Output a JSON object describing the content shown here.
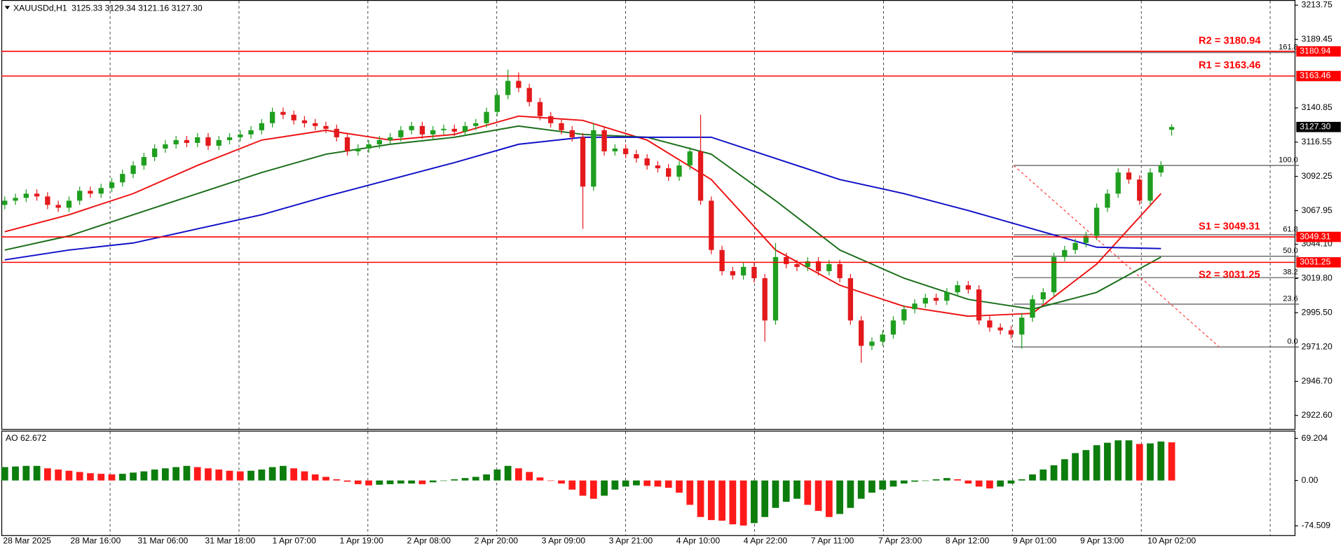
{
  "chart_data": [
    {
      "type": "candlestick",
      "title": "XAUUSDd,H1",
      "subtitle": "3125.33 3129.34 3121.16 3127.30",
      "x_labels": [
        "28 Mar 2025",
        "28 Mar 16:00",
        "31 Mar 06:00",
        "31 Mar 18:00",
        "1 Apr 07:00",
        "1 Apr 19:00",
        "2 Apr 08:00",
        "2 Apr 20:00",
        "3 Apr 09:00",
        "3 Apr 21:00",
        "4 Apr 10:00",
        "4 Apr 22:00",
        "7 Apr 11:00",
        "7 Apr 23:00",
        "8 Apr 12:00",
        "9 Apr 01:00",
        "9 Apr 13:00",
        "10 Apr 02:00"
      ],
      "open": [
        3072,
        3075,
        3077,
        3080,
        3078,
        3072,
        3070,
        3075,
        3082,
        3080,
        3084,
        3088,
        3094,
        3100,
        3106,
        3112,
        3115,
        3118,
        3116,
        3120,
        3114,
        3118,
        3120,
        3122,
        3125,
        3130,
        3138,
        3136,
        3132,
        3130,
        3128,
        3126,
        3120,
        3110,
        3112,
        3115,
        3118,
        3120,
        3125,
        3128,
        3122,
        3125,
        3126,
        3124,
        3128,
        3130,
        3138,
        3150,
        3160,
        3155,
        3145,
        3135,
        3130,
        3125,
        3120,
        3085,
        3125,
        3110,
        3112,
        3108,
        3105,
        3100,
        3098,
        3092,
        3100,
        3110,
        3075,
        3040,
        3025,
        3022,
        3028,
        3020,
        2990,
        3035,
        3030,
        3028,
        3032,
        3025,
        3030,
        3020,
        2990,
        2972,
        2975,
        2980,
        2990,
        2998,
        3002,
        3006,
        3004,
        3010,
        3015,
        3012,
        2990,
        2985,
        2983,
        2980,
        2992,
        3005,
        3010,
        3035,
        3040,
        3045,
        3050,
        3070,
        3080,
        3095,
        3090,
        3075,
        3095,
        3125.33
      ],
      "high": [
        3078,
        3080,
        3083,
        3083,
        3081,
        3075,
        3078,
        3085,
        3085,
        3087,
        3091,
        3097,
        3103,
        3109,
        3115,
        3118,
        3121,
        3121,
        3123,
        3123,
        3121,
        3123,
        3125,
        3128,
        3133,
        3141,
        3141,
        3139,
        3135,
        3133,
        3131,
        3129,
        3123,
        3115,
        3118,
        3121,
        3123,
        3128,
        3131,
        3131,
        3128,
        3129,
        3129,
        3131,
        3133,
        3141,
        3153,
        3168,
        3166,
        3158,
        3148,
        3138,
        3133,
        3128,
        3123,
        3130,
        3128,
        3115,
        3115,
        3111,
        3108,
        3103,
        3101,
        3103,
        3113,
        3136,
        3078,
        3043,
        3028,
        3031,
        3031,
        3023,
        3045,
        3038,
        3033,
        3035,
        3035,
        3033,
        3033,
        3023,
        2993,
        2978,
        2983,
        2993,
        3001,
        3005,
        3009,
        3009,
        3013,
        3018,
        3018,
        3015,
        2993,
        2988,
        2986,
        2995,
        3008,
        3013,
        3038,
        3043,
        3048,
        3053,
        3073,
        3083,
        3098,
        3098,
        3093,
        3098,
        3103,
        3129.34
      ],
      "low": [
        3069,
        3072,
        3074,
        3075,
        3069,
        3067,
        3067,
        3072,
        3077,
        3077,
        3081,
        3085,
        3091,
        3097,
        3103,
        3109,
        3112,
        3113,
        3113,
        3111,
        3111,
        3115,
        3117,
        3119,
        3122,
        3127,
        3133,
        3129,
        3127,
        3125,
        3123,
        3117,
        3107,
        3107,
        3109,
        3112,
        3115,
        3117,
        3122,
        3119,
        3119,
        3122,
        3121,
        3121,
        3125,
        3127,
        3135,
        3147,
        3152,
        3142,
        3132,
        3127,
        3122,
        3117,
        3055,
        3082,
        3107,
        3107,
        3105,
        3102,
        3097,
        3095,
        3089,
        3089,
        3097,
        3072,
        3037,
        3022,
        3019,
        3019,
        3017,
        2975,
        2987,
        3027,
        3025,
        3025,
        3022,
        3022,
        3017,
        2987,
        2960,
        2969,
        2972,
        2977,
        2987,
        2995,
        2999,
        3001,
        3001,
        3007,
        3009,
        2987,
        2982,
        2980,
        2977,
        2970,
        2989,
        3002,
        3007,
        3032,
        3037,
        3042,
        3047,
        3067,
        3077,
        3087,
        3072,
        3072,
        3092,
        3121.16
      ],
      "close": [
        3075,
        3077,
        3080,
        3078,
        3072,
        3070,
        3075,
        3082,
        3080,
        3084,
        3088,
        3094,
        3100,
        3106,
        3112,
        3115,
        3118,
        3116,
        3120,
        3114,
        3118,
        3120,
        3122,
        3125,
        3130,
        3138,
        3136,
        3132,
        3130,
        3128,
        3126,
        3120,
        3110,
        3112,
        3115,
        3118,
        3120,
        3125,
        3128,
        3122,
        3125,
        3126,
        3124,
        3128,
        3130,
        3138,
        3150,
        3160,
        3155,
        3145,
        3135,
        3130,
        3125,
        3120,
        3085,
        3125,
        3110,
        3112,
        3108,
        3105,
        3100,
        3098,
        3092,
        3100,
        3110,
        3075,
        3040,
        3025,
        3022,
        3028,
        3020,
        2990,
        3035,
        3030,
        3028,
        3032,
        3025,
        3030,
        3020,
        2990,
        2972,
        2975,
        2980,
        2990,
        2998,
        3002,
        3006,
        3004,
        3010,
        3015,
        3012,
        2990,
        2985,
        2983,
        2980,
        2992,
        3005,
        3010,
        3035,
        3040,
        3045,
        3050,
        3070,
        3080,
        3095,
        3090,
        3075,
        3095,
        3100,
        3127.3
      ],
      "last_price_label": "3127.30",
      "up_color": "#1f9e1f",
      "down_color": "#e3191c",
      "ylim": [
        2913.6,
        3216.2
      ],
      "yticks": [
        3213.75,
        3189.45,
        3140.85,
        3116.55,
        3092.25,
        3067.95,
        {
          "value": 3044.1,
          "label": "3044.10"
        },
        {
          "value": 3019.8,
          "label": "3019.80"
        },
        {
          "value": 2995.5,
          "label": "2995.50"
        },
        {
          "value": 2971.2,
          "label": "2971.20"
        },
        {
          "value": 2946.7,
          "label": "2946.70"
        },
        {
          "value": 2922.6,
          "label": "2922.60"
        }
      ],
      "moving_averages": {
        "x": [
          0,
          6,
          12,
          18,
          24,
          30,
          36,
          42,
          48,
          54,
          60,
          66,
          72,
          78,
          84,
          90,
          96,
          102,
          108
        ],
        "series": [
          {
            "color": "#ee1111",
            "values": [
              3053,
              3065,
              3080,
              3100,
              3118,
              3125,
              3118,
              3122,
              3135,
              3132,
              3118,
              3090,
              3040,
              3015,
              3000,
              2993,
              2995,
              3030,
              3080
            ]
          },
          {
            "color": "#1a6e1a",
            "values": [
              3040,
              3050,
              3065,
              3080,
              3095,
              3108,
              3115,
              3120,
              3128,
              3122,
              3120,
              3108,
              3075,
              3040,
              3020,
              3005,
              2998,
              3010,
              3035
            ]
          },
          {
            "color": "#1010c8",
            "values": [
              3033,
              3040,
              3045,
              3055,
              3065,
              3078,
              3090,
              3102,
              3115,
              3120,
              3120,
              3120,
              3105,
              3090,
              3080,
              3068,
              3055,
              3042,
              3041
            ]
          }
        ]
      },
      "levels": [
        {
          "label": "R2 = 3180.94",
          "value": 3180.94
        },
        {
          "label": "R1 = 3163.46",
          "value": 3163.46
        },
        {
          "label": "S1 = 3049.31",
          "value": 3049.31
        },
        {
          "label": "S2 = 3031.25",
          "value": 3031.25
        }
      ],
      "level_color": "#ff0000",
      "fibonacci": {
        "color": "#555555",
        "trend_color": "#ff4040",
        "levels": [
          {
            "label": "161.8",
            "value": 3180.2
          },
          {
            "label": "100.0",
            "value": 3100
          },
          {
            "label": "61.8",
            "value": 3050.8
          },
          {
            "label": "50.0",
            "value": 3035.6
          },
          {
            "label": "38.2",
            "value": 3020.4
          },
          {
            "label": "23.6",
            "value": 3001.6
          },
          {
            "label": "0.0",
            "value": 2971.2
          }
        ]
      }
    },
    {
      "type": "bar",
      "title": "AO 62.672",
      "values": [
        22,
        23,
        24,
        24,
        20,
        18,
        16,
        14,
        12,
        11,
        10,
        11,
        13,
        15,
        18,
        20,
        22,
        24,
        22,
        20,
        18,
        16,
        15,
        16,
        18,
        22,
        24,
        20,
        15,
        10,
        6,
        2,
        -2,
        -6,
        -8,
        -7,
        -6,
        -5,
        -5,
        -6,
        -3,
        0,
        2,
        4,
        6,
        10,
        18,
        24,
        20,
        14,
        5,
        0,
        -5,
        -15,
        -25,
        -30,
        -25,
        -15,
        -10,
        -8,
        -9,
        -10,
        -12,
        -20,
        -40,
        -60,
        -65,
        -66,
        -72,
        -74,
        -70,
        -60,
        -45,
        -35,
        -30,
        -40,
        -50,
        -60,
        -55,
        -45,
        -30,
        -20,
        -15,
        -10,
        -5,
        -2,
        0,
        2,
        4,
        2,
        -5,
        -10,
        -13,
        -10,
        -5,
        2,
        10,
        18,
        25,
        35,
        45,
        50,
        58,
        62,
        66,
        66,
        60,
        61,
        64,
        62.672
      ],
      "up_color": "#0d7d0d",
      "down_color": "#ff1a1a",
      "ylim": [
        -89.8,
        80.4
      ],
      "yticks": [
        69.204,
        {
          "value": 0,
          "label": "0.00"
        },
        -74.509
      ]
    }
  ]
}
